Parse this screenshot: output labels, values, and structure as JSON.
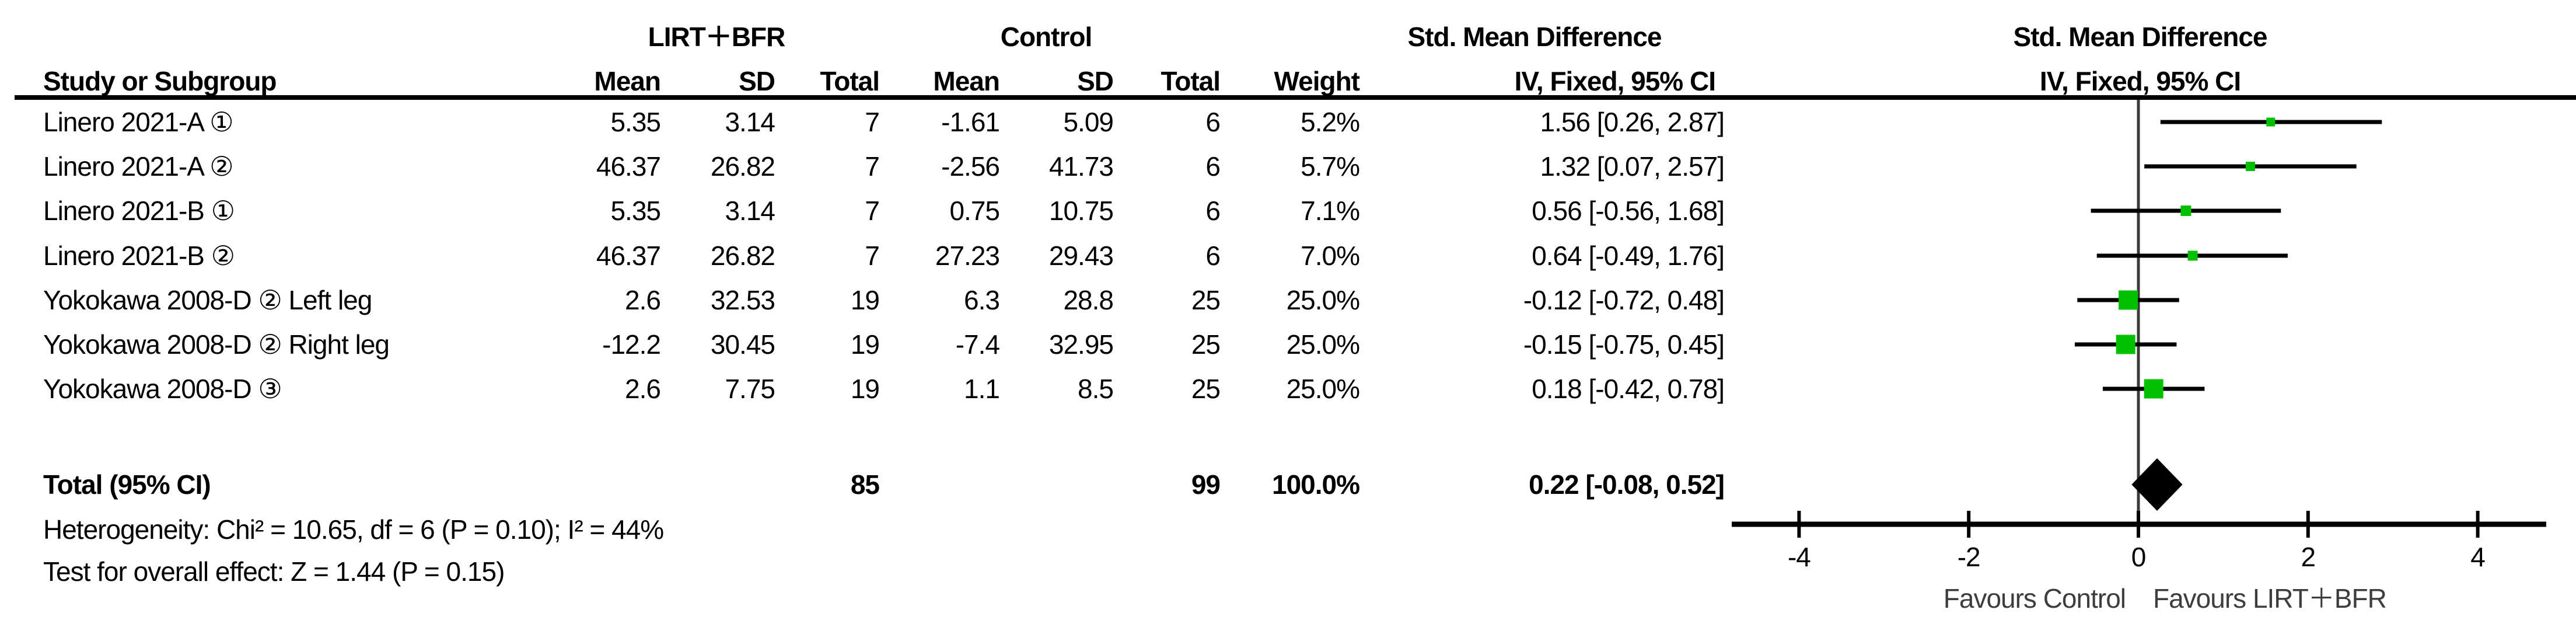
{
  "chart_data": {
    "type": "forest",
    "group_header_experimental": "LIRT＋BFR",
    "group_header_control": "Control",
    "effect_header_line1": "Std. Mean Difference",
    "effect_header_line2": "IV, Fixed, 95% CI",
    "plot_header_line1": "Std. Mean Difference",
    "plot_header_line2": "IV, Fixed, 95% CI",
    "column_headers": {
      "study": "Study or Subgroup",
      "mean": "Mean",
      "sd": "SD",
      "total": "Total",
      "weight": "Weight"
    },
    "studies": [
      {
        "label": "Linero 2021-A ①",
        "mean_e": "5.35",
        "sd_e": "3.14",
        "total_e": "7",
        "mean_c": "-1.61",
        "sd_c": "5.09",
        "total_c": "6",
        "weight": "5.2%",
        "weight_pct": 5.2,
        "ci_text": "1.56 [0.26, 2.87]",
        "est": 1.56,
        "lo": 0.26,
        "hi": 2.87
      },
      {
        "label": "Linero 2021-A ②",
        "mean_e": "46.37",
        "sd_e": "26.82",
        "total_e": "7",
        "mean_c": "-2.56",
        "sd_c": "41.73",
        "total_c": "6",
        "weight": "5.7%",
        "weight_pct": 5.7,
        "ci_text": "1.32 [0.07, 2.57]",
        "est": 1.32,
        "lo": 0.07,
        "hi": 2.57
      },
      {
        "label": "Linero 2021-B ①",
        "mean_e": "5.35",
        "sd_e": "3.14",
        "total_e": "7",
        "mean_c": "0.75",
        "sd_c": "10.75",
        "total_c": "6",
        "weight": "7.1%",
        "weight_pct": 7.1,
        "ci_text": "0.56 [-0.56, 1.68]",
        "est": 0.56,
        "lo": -0.56,
        "hi": 1.68
      },
      {
        "label": "Linero 2021-B ②",
        "mean_e": "46.37",
        "sd_e": "26.82",
        "total_e": "7",
        "mean_c": "27.23",
        "sd_c": "29.43",
        "total_c": "6",
        "weight": "7.0%",
        "weight_pct": 7.0,
        "ci_text": "0.64 [-0.49, 1.76]",
        "est": 0.64,
        "lo": -0.49,
        "hi": 1.76
      },
      {
        "label": "Yokokawa 2008-D ② Left leg",
        "mean_e": "2.6",
        "sd_e": "32.53",
        "total_e": "19",
        "mean_c": "6.3",
        "sd_c": "28.8",
        "total_c": "25",
        "weight": "25.0%",
        "weight_pct": 25.0,
        "ci_text": "-0.12 [-0.72, 0.48]",
        "est": -0.12,
        "lo": -0.72,
        "hi": 0.48
      },
      {
        "label": "Yokokawa 2008-D ② Right leg",
        "mean_e": "-12.2",
        "sd_e": "30.45",
        "total_e": "19",
        "mean_c": "-7.4",
        "sd_c": "32.95",
        "total_c": "25",
        "weight": "25.0%",
        "weight_pct": 25.0,
        "ci_text": "-0.15 [-0.75, 0.45]",
        "est": -0.15,
        "lo": -0.75,
        "hi": 0.45
      },
      {
        "label": "Yokokawa 2008-D ③",
        "mean_e": "2.6",
        "sd_e": "7.75",
        "total_e": "19",
        "mean_c": "1.1",
        "sd_c": "8.5",
        "total_c": "25",
        "weight": "25.0%",
        "weight_pct": 25.0,
        "ci_text": "0.18 [-0.42, 0.78]",
        "est": 0.18,
        "lo": -0.42,
        "hi": 0.78
      }
    ],
    "total": {
      "label": "Total (95% CI)",
      "total_e": "85",
      "total_c": "99",
      "weight": "100.0%",
      "ci_text": "0.22 [-0.08, 0.52]",
      "est": 0.22,
      "lo": -0.08,
      "hi": 0.52
    },
    "heterogeneity": "Heterogeneity: Chi² = 10.65, df = 6 (P = 0.10); I² = 44%",
    "overall_effect": "Test for overall effect: Z = 1.44 (P = 0.15)",
    "axis": {
      "ticks": [
        -4,
        -2,
        0,
        2,
        4
      ],
      "min": -4.8,
      "max": 4.8
    },
    "favours_left": "Favours Control",
    "favours_right": "Favours LIRT＋BFR",
    "colors": {
      "marker": "#00c000",
      "ci_line": "#000000",
      "zero_line": "#3a3a3a",
      "diamond": "#000000",
      "axis": "#000000"
    }
  }
}
